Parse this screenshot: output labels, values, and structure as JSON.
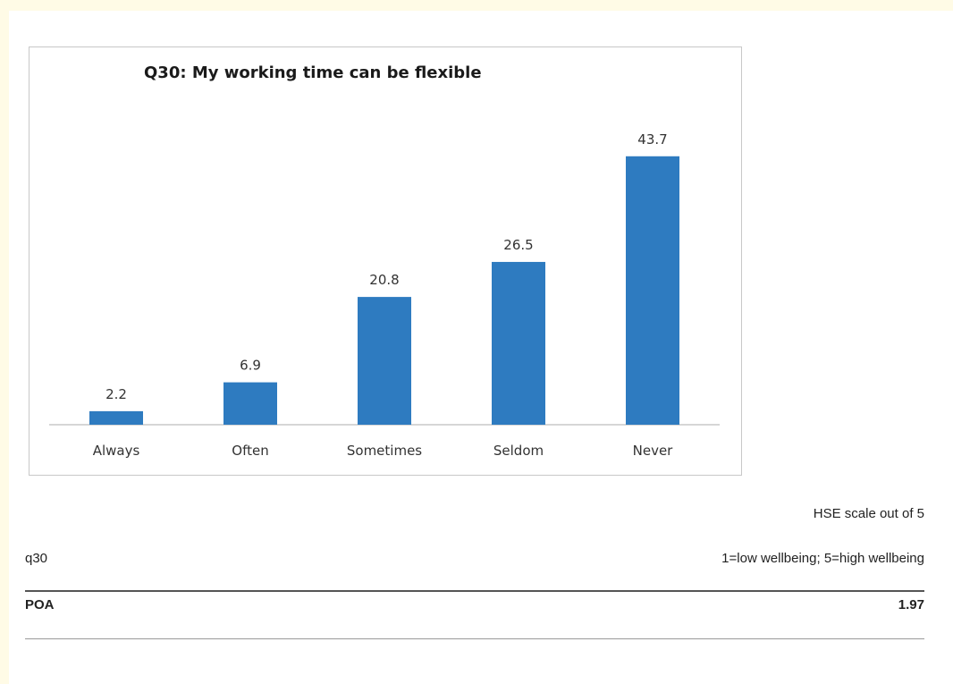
{
  "chart_data": {
    "type": "bar",
    "title": "Q30:  My working time can be flexible",
    "categories": [
      "Always",
      "Often",
      "Sometimes",
      "Seldom",
      "Never"
    ],
    "values": [
      2.2,
      6.9,
      20.8,
      26.5,
      43.7
    ],
    "data_labels": [
      "2.2",
      "6.9",
      "20.8",
      "26.5",
      "43.7"
    ],
    "xlabel": "",
    "ylabel": "",
    "ylim": [
      0,
      50
    ],
    "grid": false,
    "legend": "none",
    "bar_color": "#2e7bc0"
  },
  "footer": {
    "scale_label": "HSE scale out of 5",
    "question_code": "q30",
    "scale_description": "1=low wellbeing; 5=high wellbeing",
    "group_label": "POA",
    "group_score": "1.97"
  }
}
